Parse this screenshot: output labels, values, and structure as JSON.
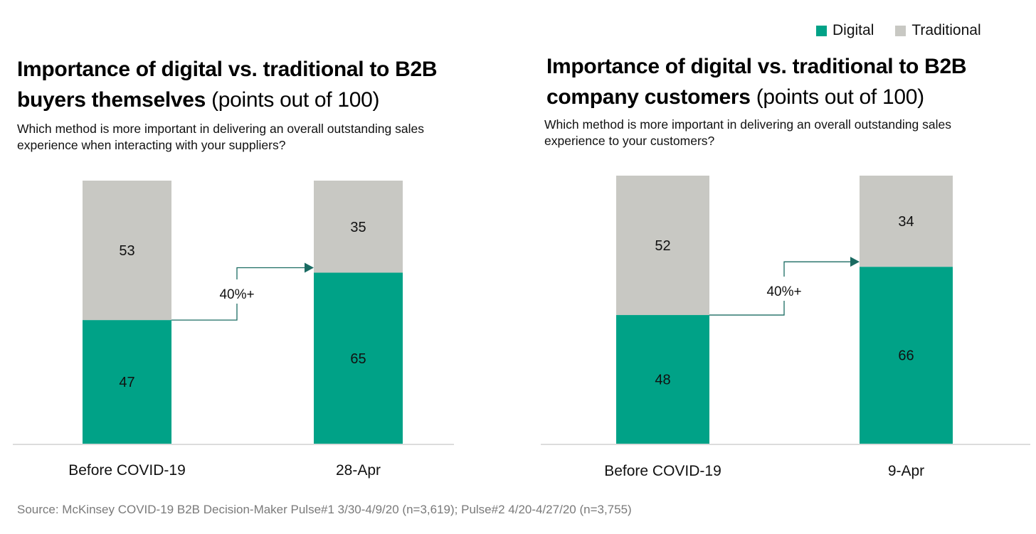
{
  "colors": {
    "digital": "#00A287",
    "traditional": "#C8C8C3",
    "arrow": "#1A6B62",
    "axis": "#C8C8C8"
  },
  "legend": [
    {
      "label": "Digital",
      "color": "#00A287"
    },
    {
      "label": "Traditional",
      "color": "#C8C8C3"
    }
  ],
  "source": "Source: McKinsey COVID-19 B2B Decision-Maker Pulse#1 3/30-4/9/20 (n=3,619); Pulse#2 4/20-4/27/20 (n=3,755)",
  "chart_data": [
    {
      "type": "bar",
      "stacked": true,
      "title_bold": "Importance of digital vs. traditional to B2B buyers themselves",
      "title_light": "(points out of 100)",
      "subtitle": "Which method is more important in delivering an overall outstanding sales experience when interacting with your suppliers?",
      "categories": [
        "Before COVID-19",
        "28-Apr"
      ],
      "series": [
        {
          "name": "Digital",
          "values": [
            47,
            65
          ]
        },
        {
          "name": "Traditional",
          "values": [
            53,
            35
          ]
        }
      ],
      "annotation": "40%+",
      "ylim": [
        0,
        100
      ],
      "legend": "top-right"
    },
    {
      "type": "bar",
      "stacked": true,
      "title_bold": "Importance of digital vs. traditional to B2B company customers",
      "title_light": "(points out of 100)",
      "subtitle": "Which method is more important in delivering an overall outstanding sales experience to your customers?",
      "categories": [
        "Before COVID-19",
        "9-Apr"
      ],
      "series": [
        {
          "name": "Digital",
          "values": [
            48,
            66
          ]
        },
        {
          "name": "Traditional",
          "values": [
            52,
            34
          ]
        }
      ],
      "annotation": "40%+",
      "ylim": [
        0,
        100
      ],
      "legend": "top-right"
    }
  ]
}
